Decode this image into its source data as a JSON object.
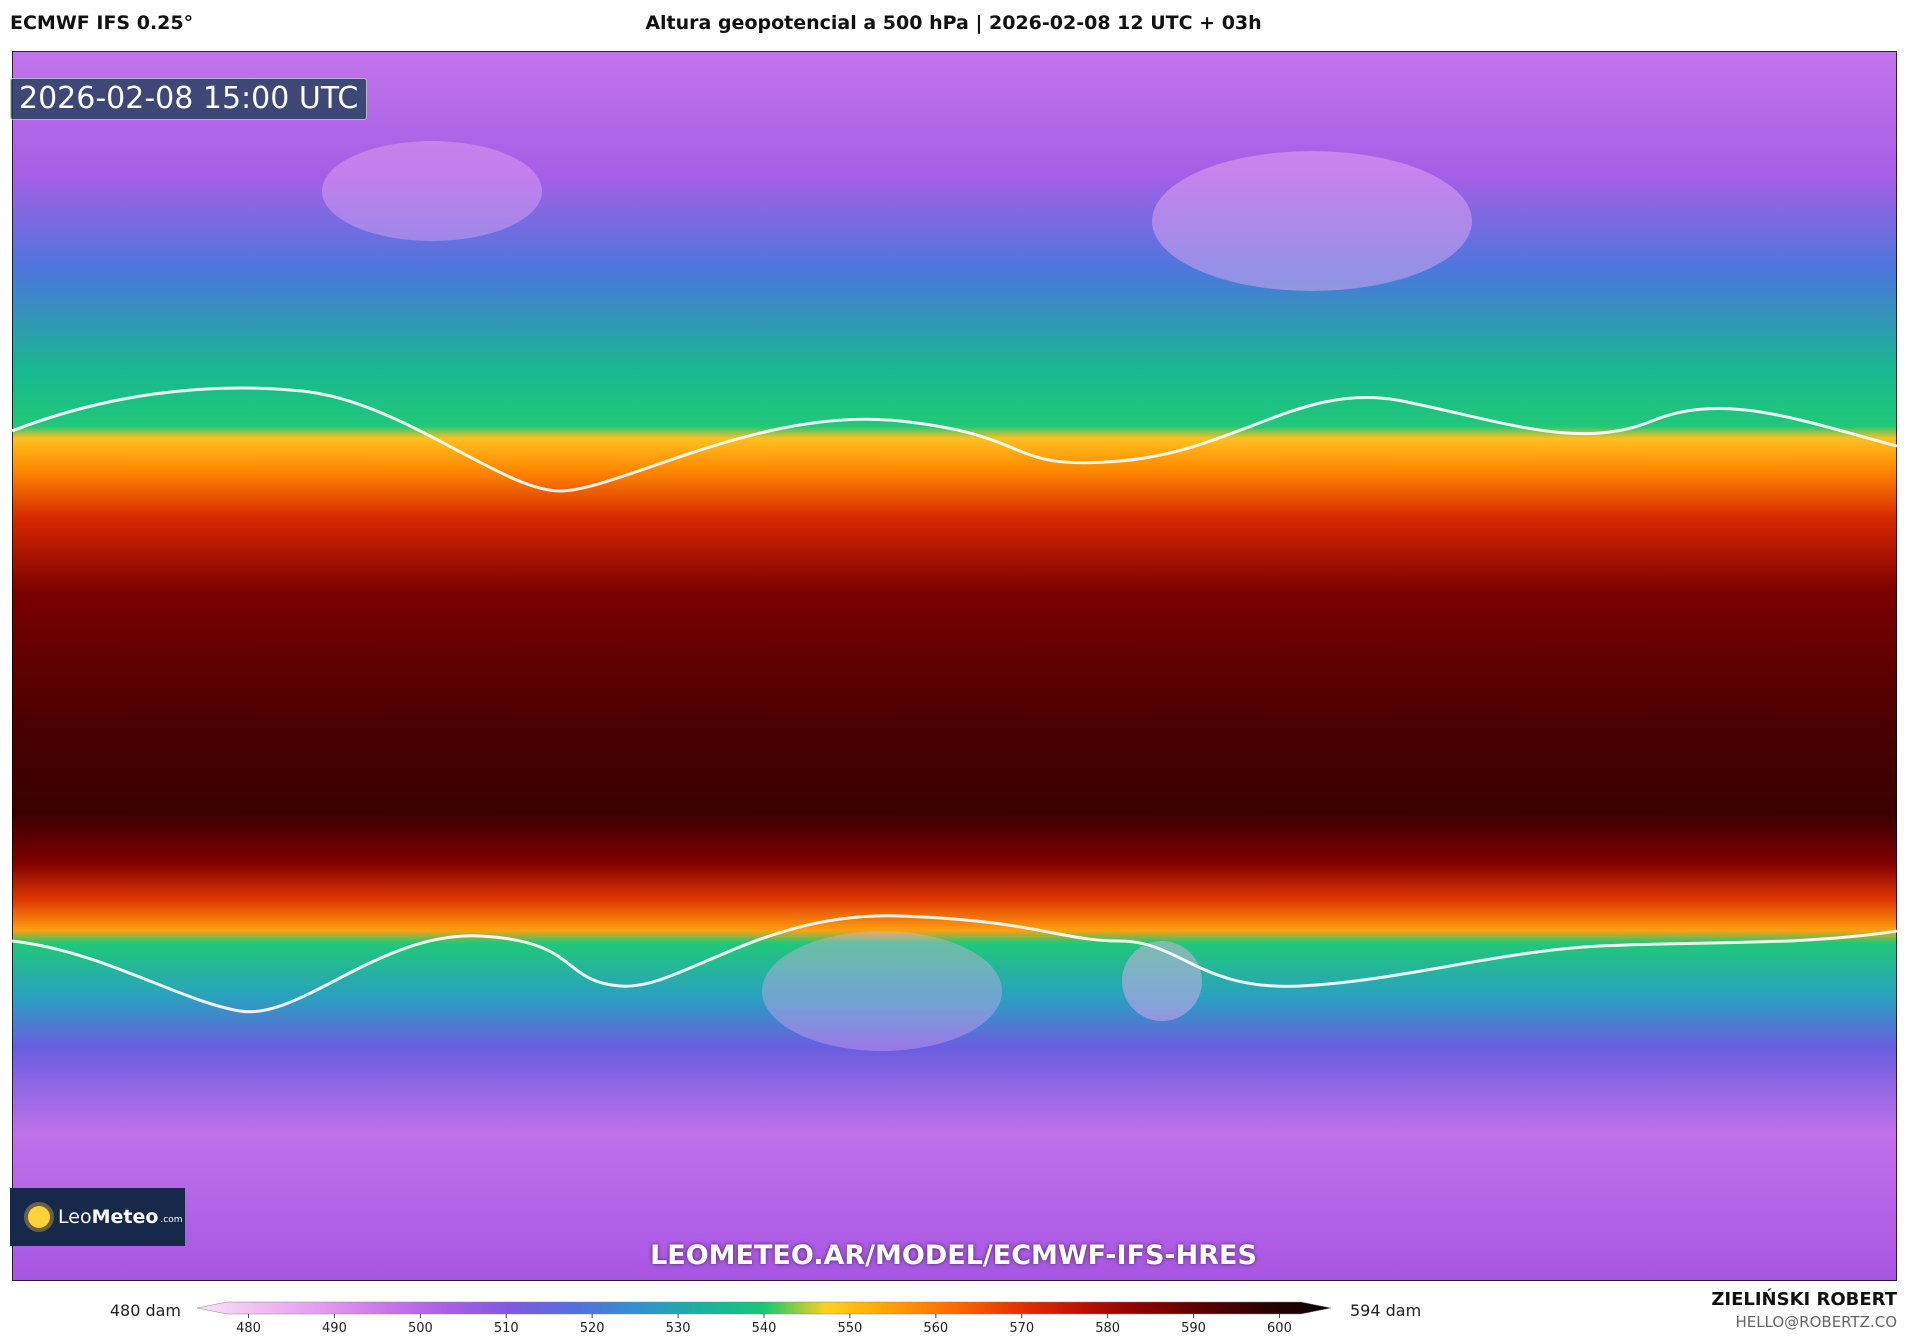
{
  "header": {
    "left": "ECMWF IFS 0.25°",
    "title": "Altura geopotencial a 500 hPa | 2026-02-08 12 UTC + 03h"
  },
  "map": {
    "timestamp": "2026-02-08 15:00 UTC",
    "watermark": "LEOMETEO.AR/MODEL/ECMWF-IFS-HRES"
  },
  "logo": {
    "light": "Leo",
    "bold": "Meteo",
    "suffix": ".com"
  },
  "colorbar": {
    "lim": [
      474,
      606
    ],
    "ticks": [
      480,
      490,
      500,
      510,
      520,
      530,
      540,
      550,
      560,
      570,
      580,
      590,
      600
    ],
    "min_label": "480 dam",
    "max_label": "594 dam",
    "colors": [
      "#fbe3fb",
      "#f0bdf2",
      "#e29bef",
      "#c877ea",
      "#a95ee6",
      "#7f58e2",
      "#5370dc",
      "#3590d2",
      "#1ab0a0",
      "#14c878",
      "#ffd21a",
      "#ffa000",
      "#ff6a00",
      "#e83200",
      "#c01000",
      "#8a0000",
      "#5a0000",
      "#2a0000",
      "#080000"
    ]
  },
  "footer": {
    "author": "ZIELIŃSKI ROBERT",
    "email": "HELLO@ROBERTZ.CO"
  }
}
